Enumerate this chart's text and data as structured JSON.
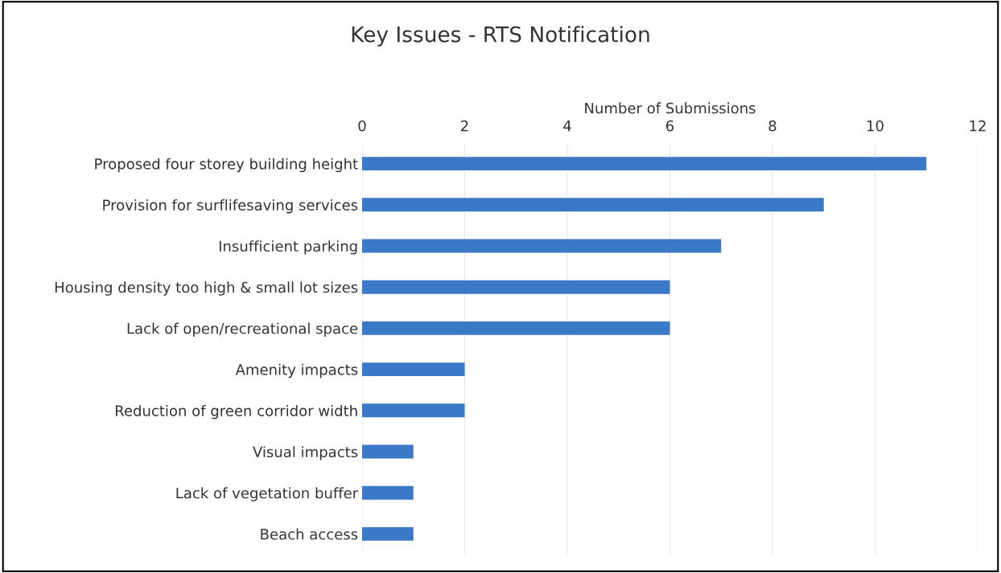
{
  "chart_data": {
    "type": "bar",
    "orientation": "horizontal",
    "title": "Key Issues - RTS Notification",
    "xlabel": "Number of Submissions",
    "categories": [
      "Proposed four storey building height",
      "Provision for surflifesaving services",
      "Insufficient parking",
      "Housing density too high & small lot sizes",
      "Lack of open/recreational space",
      "Amenity impacts",
      "Reduction of green corridor width",
      "Visual impacts",
      "Lack of vegetation buffer",
      "Beach access"
    ],
    "values": [
      11,
      9,
      7,
      6,
      6,
      2,
      2,
      1,
      1,
      1
    ],
    "color": "#3a78c8",
    "xlim": [
      0,
      12
    ],
    "xticks": [
      0,
      2,
      4,
      6,
      8,
      10,
      12
    ],
    "grid": "x"
  }
}
